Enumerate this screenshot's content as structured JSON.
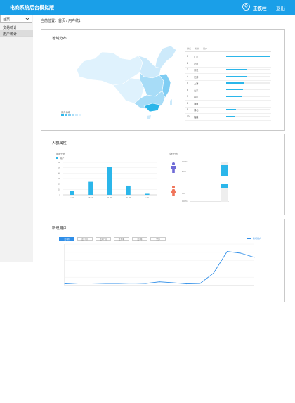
{
  "header": {
    "title": "电商系统后台模拟版",
    "user_name": "王铁柱",
    "logout_label": "退出"
  },
  "sidebar": {
    "select_value": "首页",
    "items": [
      {
        "label": "交易统计"
      },
      {
        "label": "用户统计"
      }
    ]
  },
  "breadcrumb": {
    "text": "当前位置：首页 / 用户统计"
  },
  "region": {
    "title": "地域分布:",
    "legend_label": "用户分布",
    "table_headers": [
      "排名",
      "省份",
      "用户"
    ],
    "rows": [
      {
        "rank": "1",
        "province": "广东",
        "share": 1.0
      },
      {
        "rank": "2",
        "province": "北京",
        "share": 0.53
      },
      {
        "rank": "3",
        "province": "浙江",
        "share": 0.47
      },
      {
        "rank": "4",
        "province": "江苏",
        "share": 0.47
      },
      {
        "rank": "5",
        "province": "上海",
        "share": 0.4
      },
      {
        "rank": "6",
        "province": "山东",
        "share": 0.38
      },
      {
        "rank": "7",
        "province": "四川",
        "share": 0.35
      },
      {
        "rank": "8",
        "province": "湖南",
        "share": 0.32
      },
      {
        "rank": "9",
        "province": "湖北",
        "share": 0.22
      },
      {
        "rank": "10",
        "province": "福建",
        "share": 0.2
      }
    ],
    "colors": {
      "bar": "#2bb6ea",
      "track": "#eeeeee",
      "map_light": "#dff2fd",
      "map_mid": "#a7dcf7",
      "map_dark": "#2bb6ea"
    }
  },
  "attributes": {
    "title": "人群属性:",
    "age_label": "年龄分布",
    "age_legend": "用户",
    "gender_label": "性别分布",
    "gender_ticks": [
      "100%",
      "50%",
      "0%",
      "100%"
    ],
    "colors": {
      "male": "#6f6bd6",
      "female": "#f0745a",
      "bar": "#2bb6ea"
    }
  },
  "new_users": {
    "title": "新增用户:",
    "tabs": [
      "近1周",
      "近1个月",
      "近3个月",
      "近半年",
      "近1年",
      "全部"
    ],
    "legend": "新增用户",
    "colors": {
      "line": "#2f8ee8",
      "tab_active": "#2f8ee8"
    }
  },
  "chart_data": [
    {
      "type": "bar",
      "title": "年龄分布",
      "categories": [
        "<18",
        "18~25",
        "26~35",
        "36~45",
        ">45"
      ],
      "series": [
        {
          "name": "用户",
          "values": [
            7,
            24,
            52,
            17,
            2
          ]
        }
      ],
      "ylim": [
        0,
        60
      ],
      "y_ticks": [
        0,
        10,
        20,
        30,
        40,
        50,
        60
      ],
      "grid": true,
      "legend": "top-left"
    },
    {
      "type": "line",
      "title": "新增用户",
      "series": [
        {
          "name": "新增用户",
          "values": [
            4,
            6,
            6,
            5,
            5,
            6,
            5,
            9,
            7,
            4,
            5,
            30,
            82,
            78,
            68
          ]
        }
      ],
      "ylim": [
        0,
        100
      ],
      "y_ticks": [
        0,
        20,
        40,
        60,
        80,
        100
      ],
      "grid": true,
      "legend": "top-right"
    }
  ]
}
